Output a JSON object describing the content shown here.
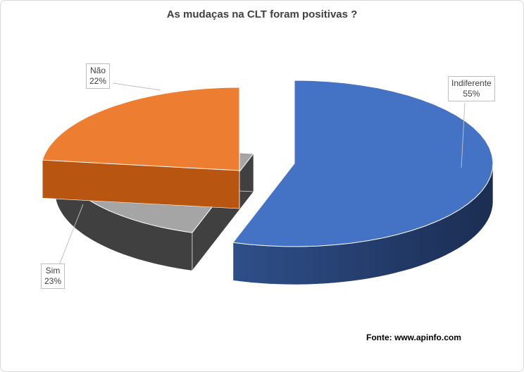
{
  "chart_data": {
    "type": "pie",
    "title": "As mudaças na CLT foram positivas ?",
    "slices": [
      {
        "name": "Indiferente",
        "value": 55,
        "label": "55%",
        "color": "#4472c4"
      },
      {
        "name": "Não",
        "value": 22,
        "label": "22%",
        "color": "#a5a5a5"
      },
      {
        "name": "Sim",
        "value": 23,
        "label": "23%",
        "color": "#ed7d31"
      }
    ],
    "source": "Fonte: www.apinfo.com"
  }
}
